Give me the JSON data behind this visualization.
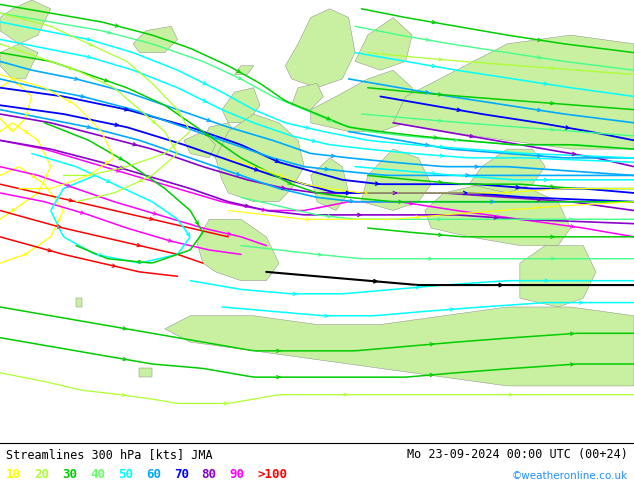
{
  "title_left": "Streamlines 300 hPa [kts] JMA",
  "title_right": "Mo 23-09-2024 00:00 UTC (00+24)",
  "credit": "©weatheronline.co.uk",
  "legend_values": [
    "10",
    "20",
    "30",
    "40",
    "50",
    "60",
    "70",
    "80",
    "90",
    ">100"
  ],
  "legend_colors": [
    "#ffff00",
    "#adff2f",
    "#00cc00",
    "#66ff66",
    "#00ffff",
    "#00aaff",
    "#0000ff",
    "#8800cc",
    "#ff00ff",
    "#ff0000"
  ],
  "sea_color": "#e8e8e8",
  "land_color": "#c8f0a0",
  "fig_width": 6.34,
  "fig_height": 4.9,
  "title_fontsize": 8.5,
  "legend_fontsize": 9,
  "credit_fontsize": 7.5
}
